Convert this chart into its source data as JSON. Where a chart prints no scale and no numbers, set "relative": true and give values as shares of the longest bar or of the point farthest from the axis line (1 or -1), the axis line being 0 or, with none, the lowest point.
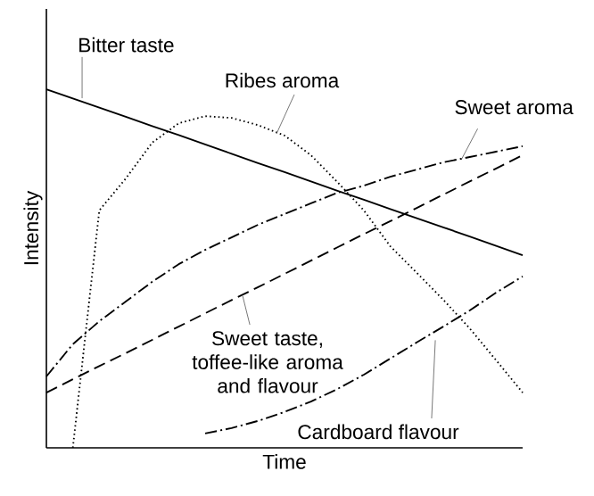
{
  "chart_data": {
    "type": "line",
    "relative": true,
    "xlabel": "Time",
    "ylabel": "Intensity",
    "marker": "none",
    "categories": [
      null,
      null,
      null,
      null,
      null,
      null,
      null,
      null,
      null,
      null,
      null,
      null,
      null,
      null,
      null,
      null,
      null,
      null,
      null
    ],
    "series": [
      {
        "name": "Bitter taste",
        "color": "#000000",
        "line_style": "solid",
        "values": [
          1.0,
          0.974,
          0.949,
          0.923,
          0.897,
          0.872,
          0.846,
          0.82,
          0.794,
          0.769,
          0.743,
          0.717,
          0.692,
          0.666,
          0.64,
          0.615,
          0.589,
          0.563,
          0.537
        ]
      },
      {
        "name": "Ribes aroma",
        "color": "#000000",
        "line_style": "dotted",
        "values": [
          null,
          0.0,
          0.662,
          0.751,
          0.851,
          0.905,
          0.925,
          0.92,
          0.9,
          0.871,
          0.816,
          0.741,
          0.662,
          0.562,
          0.488,
          0.413,
          0.333,
          0.244,
          0.154
        ]
      },
      {
        "name": "Sweet aroma",
        "color": "#000000",
        "line_style": "dashdot",
        "values": [
          0.199,
          0.289,
          0.353,
          0.408,
          0.463,
          0.512,
          0.552,
          0.587,
          0.622,
          0.652,
          0.682,
          0.711,
          0.731,
          0.756,
          0.776,
          0.796,
          0.811,
          0.826,
          0.841
        ]
      },
      {
        "name": "Sweet taste, toffee-like aroma and flavour",
        "color": "#000000",
        "line_style": "dashed",
        "values": [
          0.154,
          0.191,
          0.228,
          0.264,
          0.301,
          0.338,
          0.375,
          0.412,
          0.448,
          0.485,
          0.522,
          0.559,
          0.596,
          0.632,
          0.669,
          0.706,
          0.743,
          0.779,
          0.816
        ]
      },
      {
        "name": "Cardboard flavour",
        "color": "#000000",
        "line_style": "dashdot",
        "values": [
          null,
          null,
          null,
          null,
          null,
          null,
          0.04,
          0.055,
          0.075,
          0.1,
          0.129,
          0.164,
          0.204,
          0.249,
          0.294,
          0.338,
          0.383,
          0.433,
          0.478
        ]
      }
    ]
  }
}
